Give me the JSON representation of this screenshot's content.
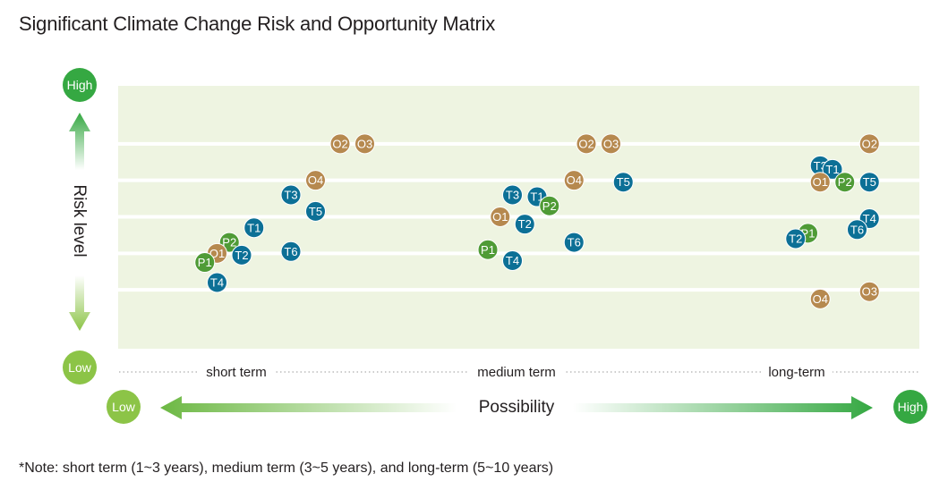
{
  "title": "Significant Climate Change Risk and Opportunity Matrix",
  "note": "*Note: short term (1~3 years), medium term (3~5 years), and long-term (5~10 years)",
  "colors": {
    "background": "#eef4e1",
    "opportunity": "#b6894f",
    "transition": "#0c7096",
    "physical": "#4f9b36",
    "high_circle": "#35a842",
    "low_circle": "#8cc447",
    "gridline": "#ffffff",
    "dotted": "#9a9a9a"
  },
  "chart_data": {
    "type": "scatter",
    "title": "Significant Climate Change Risk and Opportunity Matrix",
    "xlabel": "Possibility",
    "ylabel": "Risk level",
    "x_low_label": "Low",
    "x_high_label": "High",
    "y_low_label": "Low",
    "y_high_label": "High",
    "x_groups": [
      "short term",
      "medium term",
      "long-term"
    ],
    "xlim": [
      0,
      3
    ],
    "ylim": [
      0,
      6
    ],
    "grid": true,
    "points": [
      {
        "label": "O2",
        "kind": "opportunity",
        "x": 0.8,
        "y": 5.0
      },
      {
        "label": "O3",
        "kind": "opportunity",
        "x": 0.9,
        "y": 5.0
      },
      {
        "label": "O4",
        "kind": "opportunity",
        "x": 0.7,
        "y": 4.0
      },
      {
        "label": "T3",
        "kind": "transition",
        "x": 0.6,
        "y": 3.6
      },
      {
        "label": "T5",
        "kind": "transition",
        "x": 0.7,
        "y": 3.15
      },
      {
        "label": "T1",
        "kind": "transition",
        "x": 0.45,
        "y": 2.7
      },
      {
        "label": "P2",
        "kind": "physical",
        "x": 0.35,
        "y": 2.3
      },
      {
        "label": "O1",
        "kind": "opportunity",
        "x": 0.3,
        "y": 2.0
      },
      {
        "label": "T2",
        "kind": "transition",
        "x": 0.4,
        "y": 1.95
      },
      {
        "label": "T6",
        "kind": "transition",
        "x": 0.6,
        "y": 2.05
      },
      {
        "label": "P1",
        "kind": "physical",
        "x": 0.25,
        "y": 1.75
      },
      {
        "label": "T4",
        "kind": "transition",
        "x": 0.3,
        "y": 1.2
      },
      {
        "label": "O2",
        "kind": "opportunity",
        "x": 1.8,
        "y": 5.0
      },
      {
        "label": "O3",
        "kind": "opportunity",
        "x": 1.9,
        "y": 5.0
      },
      {
        "label": "O4",
        "kind": "opportunity",
        "x": 1.75,
        "y": 4.0
      },
      {
        "label": "T5",
        "kind": "transition",
        "x": 1.95,
        "y": 3.95
      },
      {
        "label": "T3",
        "kind": "transition",
        "x": 1.5,
        "y": 3.6
      },
      {
        "label": "T1",
        "kind": "transition",
        "x": 1.6,
        "y": 3.55
      },
      {
        "label": "P2",
        "kind": "physical",
        "x": 1.65,
        "y": 3.3
      },
      {
        "label": "O1",
        "kind": "opportunity",
        "x": 1.45,
        "y": 3.0
      },
      {
        "label": "T2",
        "kind": "transition",
        "x": 1.55,
        "y": 2.8
      },
      {
        "label": "T6",
        "kind": "transition",
        "x": 1.75,
        "y": 2.3
      },
      {
        "label": "P1",
        "kind": "physical",
        "x": 1.4,
        "y": 2.1
      },
      {
        "label": "T4",
        "kind": "transition",
        "x": 1.5,
        "y": 1.8
      },
      {
        "label": "O2",
        "kind": "opportunity",
        "x": 2.95,
        "y": 5.0
      },
      {
        "label": "T3",
        "kind": "transition",
        "x": 2.75,
        "y": 4.4
      },
      {
        "label": "T1",
        "kind": "transition",
        "x": 2.8,
        "y": 4.3
      },
      {
        "label": "O1",
        "kind": "opportunity",
        "x": 2.75,
        "y": 3.95
      },
      {
        "label": "P2",
        "kind": "physical",
        "x": 2.85,
        "y": 3.95
      },
      {
        "label": "T5",
        "kind": "transition",
        "x": 2.95,
        "y": 3.95
      },
      {
        "label": "T4",
        "kind": "transition",
        "x": 2.95,
        "y": 2.95
      },
      {
        "label": "T6",
        "kind": "transition",
        "x": 2.9,
        "y": 2.65
      },
      {
        "label": "P1",
        "kind": "physical",
        "x": 2.7,
        "y": 2.55
      },
      {
        "label": "T2",
        "kind": "transition",
        "x": 2.65,
        "y": 2.4
      },
      {
        "label": "O3",
        "kind": "opportunity",
        "x": 2.95,
        "y": 0.95
      },
      {
        "label": "O4",
        "kind": "opportunity",
        "x": 2.75,
        "y": 0.75
      }
    ]
  }
}
